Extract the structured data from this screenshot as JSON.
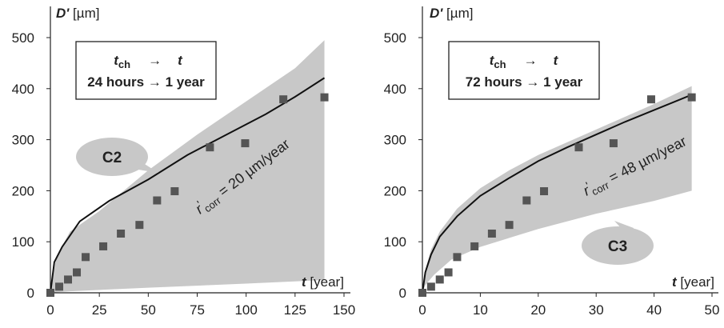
{
  "chart_data": [
    {
      "type": "scatter",
      "ylabel_bold": "D'",
      "ylabel_unit": " [µm]",
      "xlabel_bold": "t",
      "xlabel_unit": " [year]",
      "xlim": [
        0,
        150
      ],
      "ylim": [
        0,
        500
      ],
      "xticks": [
        "0",
        "25",
        "50",
        "75",
        "100",
        "125",
        "150"
      ],
      "yticks": [
        "0",
        "100",
        "200",
        "300",
        "400",
        "500"
      ],
      "box": {
        "line1_t": "t",
        "line1_sub": "ch",
        "line1_arrow": "→",
        "line1_t2": "t",
        "line2": "24 hours → 1 year"
      },
      "callout": "C2",
      "annotation": {
        "r": "r",
        "sup": "'",
        "sub": "corr",
        "rest": " = 20 µm/year"
      },
      "points": [
        [
          0,
          0
        ],
        [
          4.5,
          12
        ],
        [
          9,
          26
        ],
        [
          13.5,
          40
        ],
        [
          18,
          70
        ],
        [
          27,
          91
        ],
        [
          36,
          116
        ],
        [
          45.5,
          133
        ],
        [
          54.5,
          181
        ],
        [
          63.5,
          199
        ],
        [
          81.5,
          285
        ],
        [
          99.5,
          293
        ],
        [
          119,
          379
        ],
        [
          140,
          383
        ]
      ],
      "fit_line": [
        [
          0,
          0
        ],
        [
          2,
          60
        ],
        [
          6,
          90
        ],
        [
          15,
          140
        ],
        [
          30,
          180
        ],
        [
          50,
          222
        ],
        [
          70,
          270
        ],
        [
          90,
          310
        ],
        [
          110,
          350
        ],
        [
          125,
          384
        ],
        [
          140,
          421
        ]
      ],
      "band_upper": [
        [
          0,
          0
        ],
        [
          3,
          70
        ],
        [
          10,
          120
        ],
        [
          25,
          160
        ],
        [
          50,
          240
        ],
        [
          75,
          310
        ],
        [
          100,
          375
        ],
        [
          125,
          440
        ],
        [
          140,
          495
        ]
      ],
      "band_lower": [
        [
          140,
          25
        ],
        [
          100,
          18
        ],
        [
          50,
          10
        ],
        [
          10,
          3
        ],
        [
          0,
          0
        ]
      ]
    },
    {
      "type": "scatter",
      "ylabel_bold": "D'",
      "ylabel_unit": " [µm]",
      "xlabel_bold": "t",
      "xlabel_unit": " [year]",
      "xlim": [
        0,
        50
      ],
      "ylim": [
        0,
        500
      ],
      "xticks": [
        "0",
        "10",
        "20",
        "30",
        "40",
        "50"
      ],
      "yticks": [
        "0",
        "100",
        "200",
        "300",
        "400",
        "500"
      ],
      "box": {
        "line1_t": "t",
        "line1_sub": "ch",
        "line1_arrow": "→",
        "line1_t2": "t",
        "line2": "72 hours → 1 year"
      },
      "callout": "C3",
      "annotation": {
        "r": "r",
        "sup": "'",
        "sub": "corr",
        "rest": " = 48 µm/year"
      },
      "points": [
        [
          0,
          0
        ],
        [
          1.5,
          12
        ],
        [
          3,
          26
        ],
        [
          4.5,
          40
        ],
        [
          6,
          70
        ],
        [
          9,
          91
        ],
        [
          12,
          116
        ],
        [
          15,
          133
        ],
        [
          18,
          181
        ],
        [
          21,
          199
        ],
        [
          27,
          285
        ],
        [
          33,
          293
        ],
        [
          39.5,
          379
        ],
        [
          46.5,
          383
        ]
      ],
      "fit_line": [
        [
          0,
          0
        ],
        [
          0.5,
          40
        ],
        [
          1.5,
          75
        ],
        [
          3,
          110
        ],
        [
          6,
          150
        ],
        [
          10,
          190
        ],
        [
          15,
          225
        ],
        [
          20,
          258
        ],
        [
          25,
          285
        ],
        [
          30,
          310
        ],
        [
          35,
          335
        ],
        [
          40,
          358
        ],
        [
          46.5,
          388
        ]
      ],
      "band_upper": [
        [
          0,
          0
        ],
        [
          0.5,
          45
        ],
        [
          1.5,
          85
        ],
        [
          3,
          120
        ],
        [
          6,
          165
        ],
        [
          10,
          205
        ],
        [
          15,
          240
        ],
        [
          20,
          270
        ],
        [
          30,
          320
        ],
        [
          40,
          370
        ],
        [
          46.5,
          405
        ]
      ],
      "band_lower": [
        [
          46.5,
          200
        ],
        [
          40,
          180
        ],
        [
          30,
          155
        ],
        [
          20,
          125
        ],
        [
          10,
          90
        ],
        [
          5,
          65
        ],
        [
          2,
          35
        ],
        [
          0.5,
          15
        ],
        [
          0,
          0
        ]
      ]
    }
  ],
  "colors": {
    "band": "#c8c8c8",
    "marker": "#555555",
    "line": "#111111",
    "callout": "#c8c8c8"
  }
}
